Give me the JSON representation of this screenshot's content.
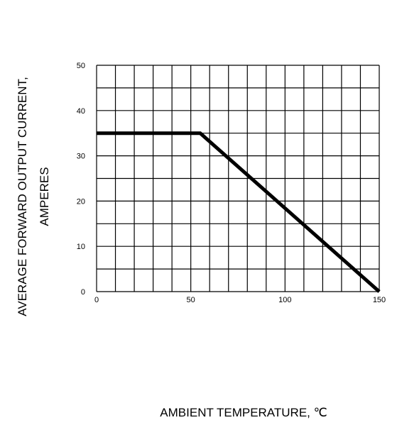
{
  "chart_data": {
    "type": "line",
    "ylabel_line1": "AVERAGE FORWARD OUTPUT CURRENT,",
    "ylabel_line2": "AMPERES",
    "xlabel": "AMBIENT TEMPERATURE, ℃",
    "xlim": [
      0,
      150
    ],
    "ylim": [
      0,
      50
    ],
    "x_grid_step": 10,
    "y_grid_step": 5,
    "x_ticks": [
      0,
      50,
      100,
      150
    ],
    "y_ticks": [
      0,
      10,
      20,
      30,
      40,
      50
    ],
    "grid": true,
    "series": [
      {
        "x": [
          0,
          55,
          150
        ],
        "y": [
          35,
          35,
          0
        ]
      }
    ]
  }
}
